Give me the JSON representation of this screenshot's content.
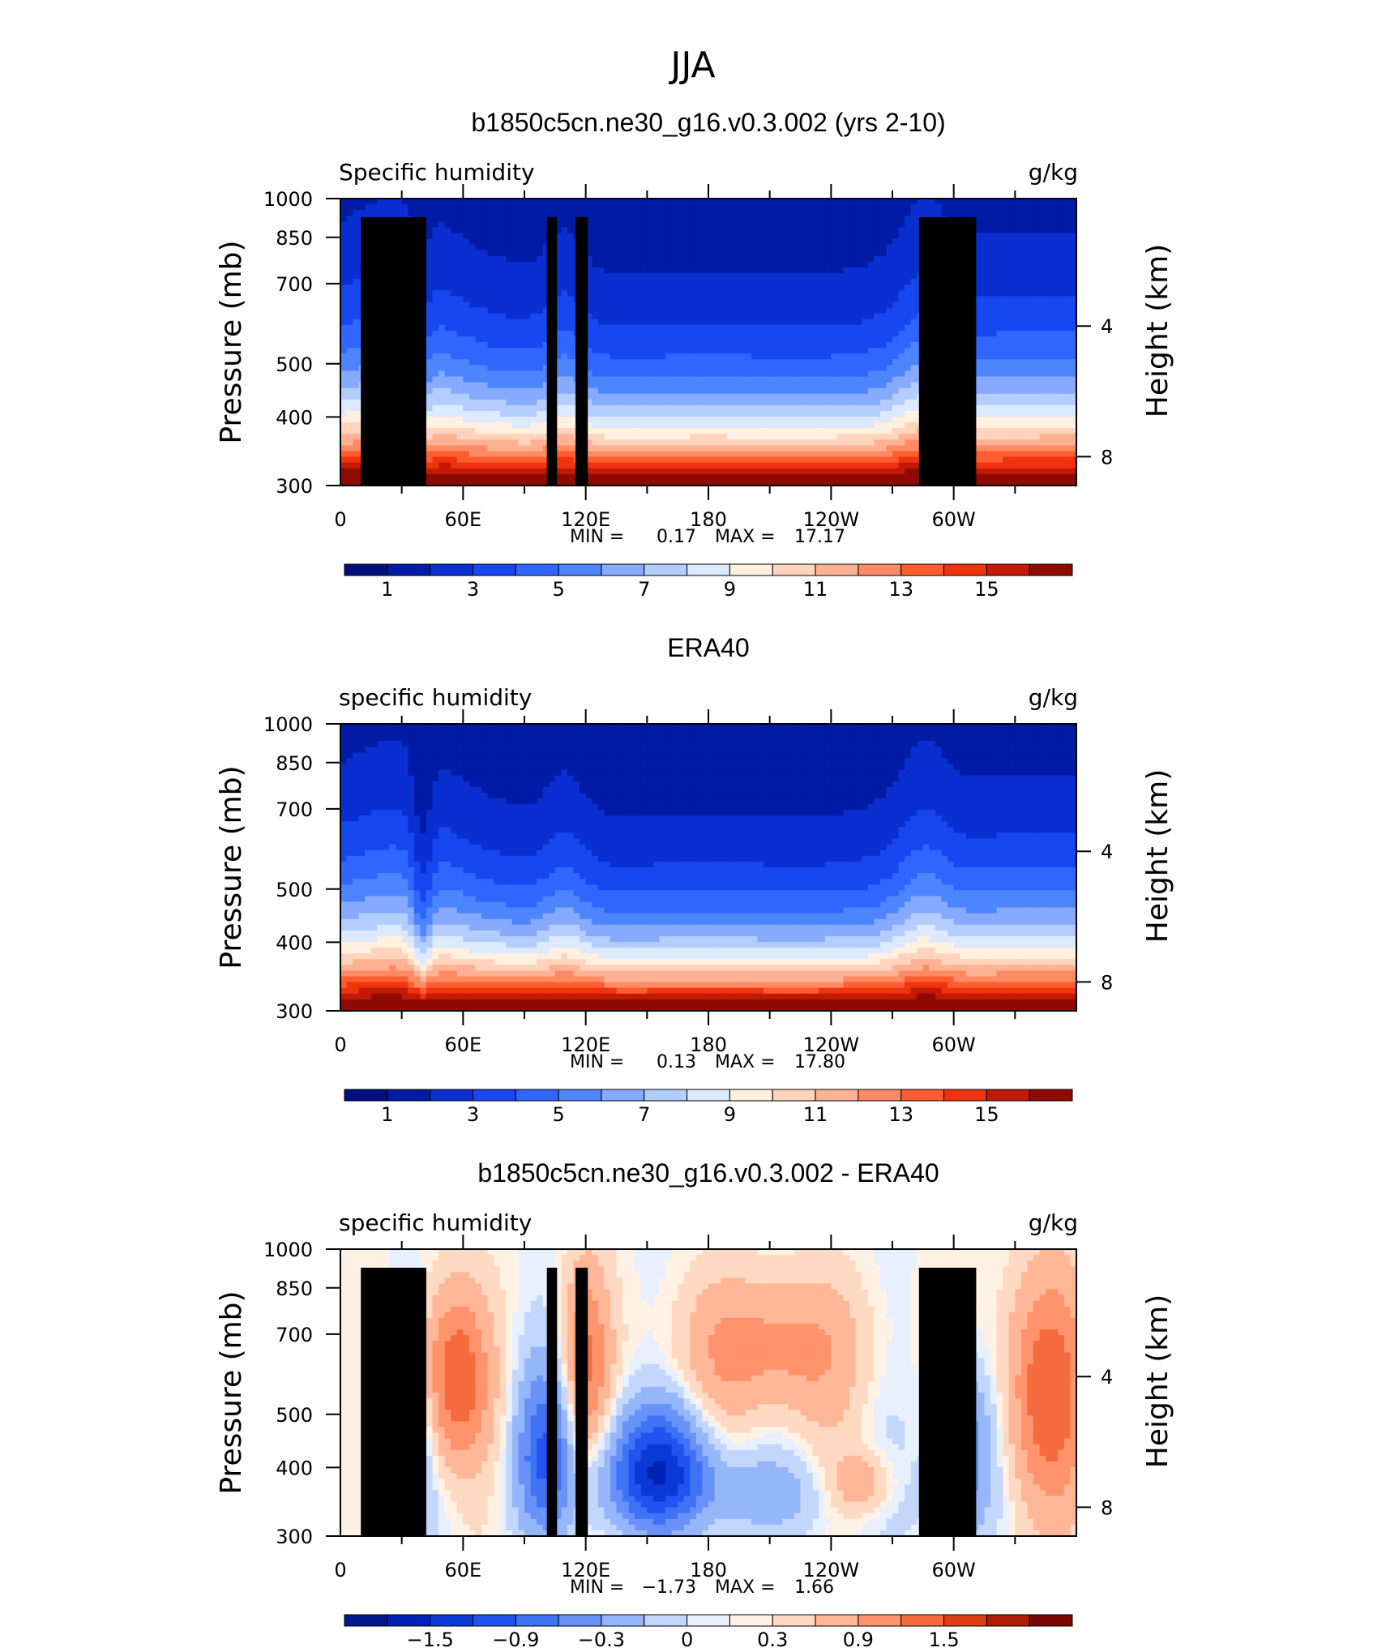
{
  "figure_title": "JJA",
  "colors": {
    "qfill": [
      "#00117f",
      "#001ba6",
      "#0a2fd0",
      "#1747f0",
      "#2f66ff",
      "#4d84ff",
      "#85aaff",
      "#b3cdff",
      "#dce9ff",
      "#fff0df",
      "#ffd3bc",
      "#ffb193",
      "#ff8a64",
      "#ff5c30",
      "#f0330f",
      "#c21a06",
      "#8f0b00"
    ],
    "dfill": [
      "#001a8c",
      "#0022b5",
      "#0a39d6",
      "#2252f0",
      "#3f72f5",
      "#6892f7",
      "#96b6fa",
      "#c3d7fc",
      "#e8f0fe",
      "#fff1e4",
      "#ffd9c2",
      "#ffb797",
      "#ff936c",
      "#f56a3e",
      "#e03e14",
      "#b01c03",
      "#7a0800"
    ],
    "land": "#000000"
  },
  "chart_data": [
    {
      "type": "heatmap",
      "title": "b1850c5cn.ne30_g16.v0.3.002 (yrs 2-10)",
      "left_label": "Specific humidity",
      "right_label": "g/kg",
      "ylabel": "Pressure (mb)",
      "ylabel_right": "Height (km)",
      "yticks": [
        "300",
        "400",
        "500",
        "700",
        "850",
        "1000"
      ],
      "yticks_right": [
        "8",
        "4"
      ],
      "xticks": [
        "0",
        "60E",
        "120E",
        "180",
        "120W",
        "60W"
      ],
      "ylim": [
        1000,
        300
      ],
      "stats": {
        "min_label": "MIN =",
        "min": "0.17",
        "max_label": "MAX =",
        "max": "17.17"
      },
      "colorbar": {
        "labels": [
          "1",
          "3",
          "5",
          "7",
          "9",
          "11",
          "13",
          "15"
        ],
        "levels": [
          0,
          1,
          2,
          3,
          4,
          5,
          6,
          7,
          8,
          9,
          10,
          11,
          12,
          13,
          14,
          15,
          16
        ]
      }
    },
    {
      "type": "heatmap",
      "title": "ERA40",
      "left_label": "specific humidity",
      "right_label": "g/kg",
      "ylabel": "Pressure (mb)",
      "ylabel_right": "Height (km)",
      "yticks": [
        "300",
        "400",
        "500",
        "700",
        "850",
        "1000"
      ],
      "yticks_right": [
        "8",
        "4"
      ],
      "xticks": [
        "0",
        "60E",
        "120E",
        "180",
        "120W",
        "60W"
      ],
      "ylim": [
        1000,
        300
      ],
      "stats": {
        "min_label": "MIN =",
        "min": "0.13",
        "max_label": "MAX =",
        "max": "17.80"
      },
      "colorbar": {
        "labels": [
          "1",
          "3",
          "5",
          "7",
          "9",
          "11",
          "13",
          "15"
        ],
        "levels": [
          0,
          1,
          2,
          3,
          4,
          5,
          6,
          7,
          8,
          9,
          10,
          11,
          12,
          13,
          14,
          15,
          16
        ]
      }
    },
    {
      "type": "heatmap",
      "title": "b1850c5cn.ne30_g16.v0.3.002 - ERA40",
      "left_label": "specific humidity",
      "right_label": "g/kg",
      "ylabel": "Pressure (mb)",
      "ylabel_right": "Height (km)",
      "yticks": [
        "300",
        "400",
        "500",
        "700",
        "850",
        "1000"
      ],
      "yticks_right": [
        "8",
        "4"
      ],
      "xticks": [
        "0",
        "60E",
        "120E",
        "180",
        "120W",
        "60W"
      ],
      "ylim": [
        1000,
        300
      ],
      "stats": {
        "min_label": "MIN =",
        "min": "−1.73",
        "max_label": "MAX =",
        "max": "1.66"
      },
      "colorbar": {
        "labels": [
          "−1.5",
          "−0.9",
          "−0.3",
          "0",
          "0.3",
          "0.9",
          "1.5"
        ],
        "levels": [
          -2.1,
          -1.8,
          -1.5,
          -1.2,
          -0.9,
          -0.6,
          -0.3,
          -0.1,
          0,
          0.1,
          0.3,
          0.6,
          0.9,
          1.2,
          1.5,
          1.8,
          2.1
        ]
      }
    }
  ]
}
